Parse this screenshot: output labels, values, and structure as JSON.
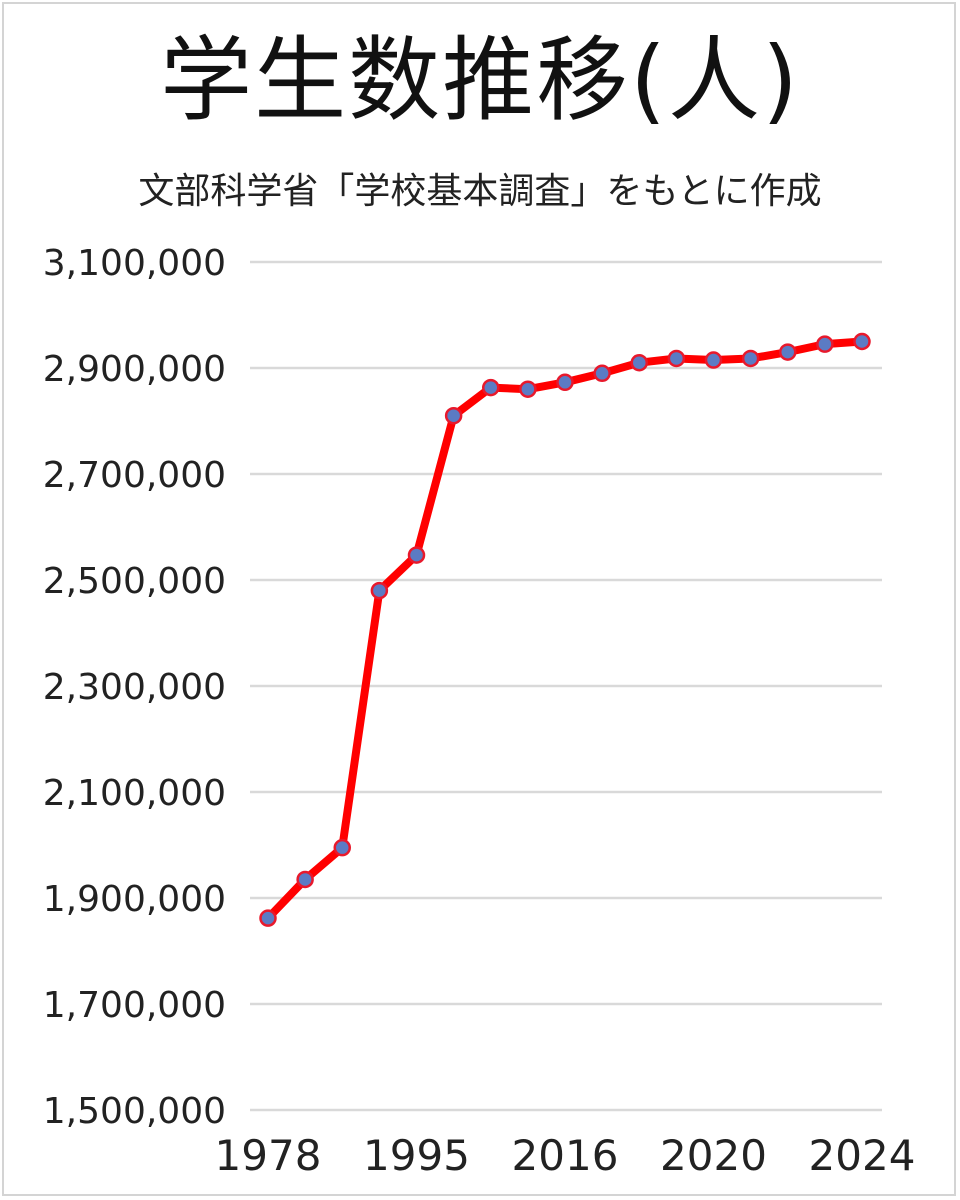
{
  "title": "学生数推移(人)",
  "subtitle": "文部科学省「学校基本調査」をもとに作成",
  "colors": {
    "line": "#ff0000",
    "marker_fill": "#5b7bc4",
    "marker_stroke": "#e8192c",
    "grid": "#d9d9d9",
    "text": "#222222"
  },
  "chart_data": {
    "type": "line",
    "title": "学生数推移(人)",
    "subtitle": "文部科学省「学校基本調査」をもとに作成",
    "y_ticks": [
      "1,500,000",
      "1,700,000",
      "1,900,000",
      "2,100,000",
      "2,300,000",
      "2,500,000",
      "2,700,000",
      "2,900,000",
      "3,100,000"
    ],
    "y_tick_values": [
      1500000,
      1700000,
      1900000,
      2100000,
      2300000,
      2500000,
      2700000,
      2900000,
      3100000
    ],
    "ylim": [
      1500000,
      3100000
    ],
    "x_tick_labels": [
      "1978",
      "1995",
      "2016",
      "2020",
      "2024"
    ],
    "x_tick_point_index": [
      0,
      4,
      8,
      12,
      16
    ],
    "grid": true,
    "legend": "none",
    "series": [
      {
        "values": [
          1862000,
          1935000,
          1995000,
          2480000,
          2547000,
          2810000,
          2863000,
          2860000,
          2873000,
          2890000,
          2910000,
          2918000,
          2915000,
          2918000,
          2930000,
          2945000,
          2950000
        ]
      }
    ]
  }
}
